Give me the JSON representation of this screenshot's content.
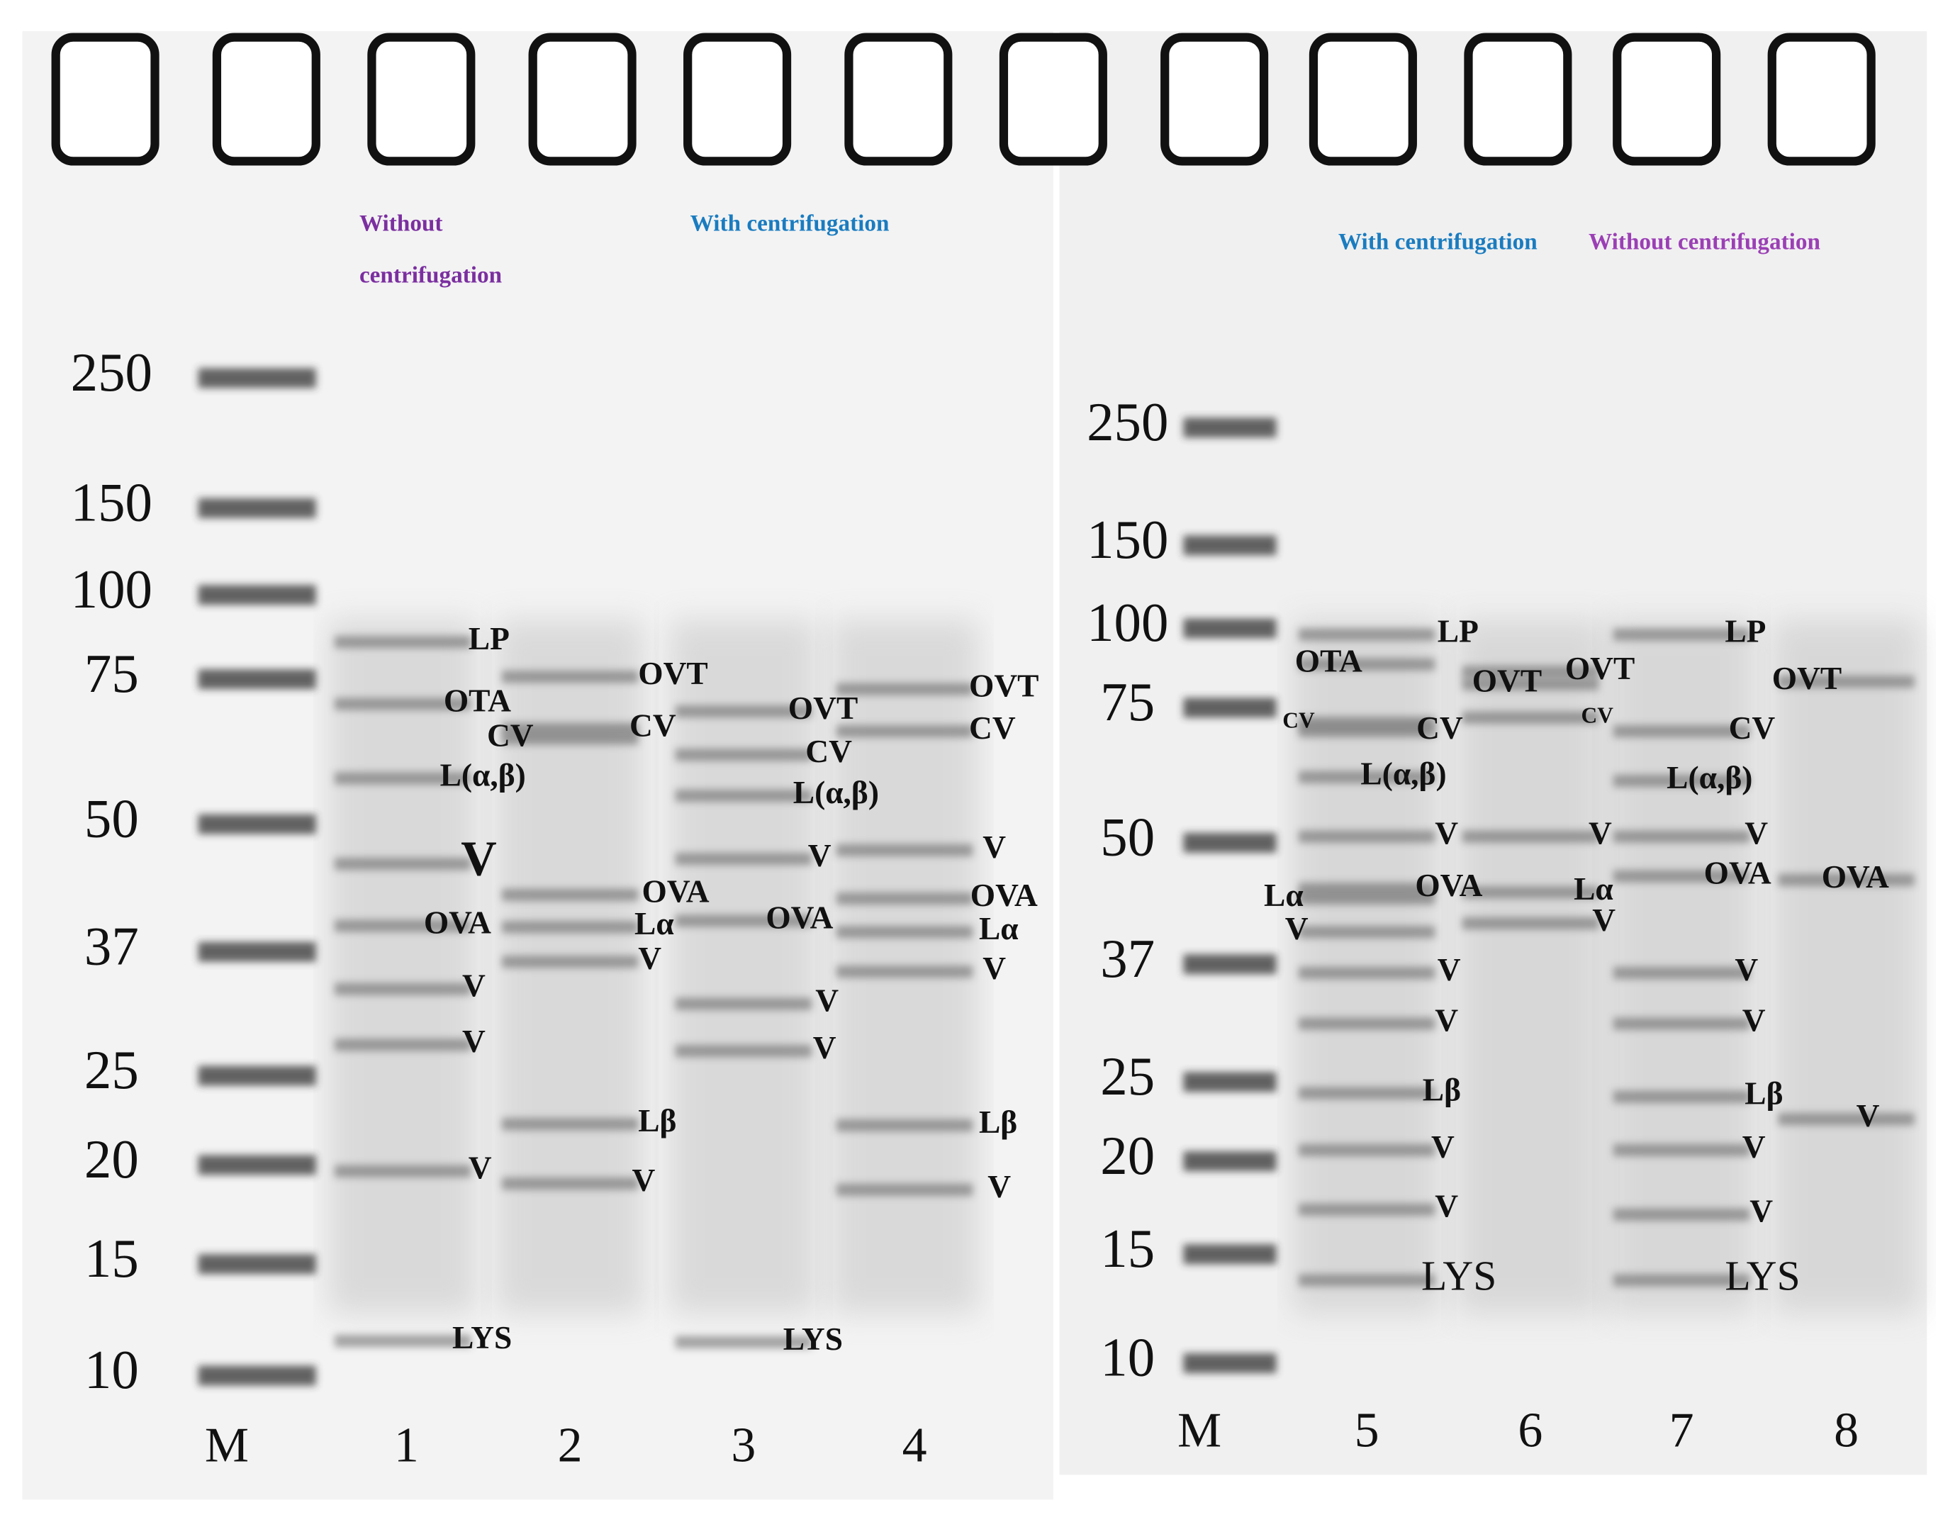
{
  "panels": [
    {
      "marker_labels": [
        250,
        150,
        100,
        75,
        50,
        37,
        25,
        20,
        15,
        10
      ],
      "lane_labels": [
        "M",
        "1",
        "2",
        "3",
        "4"
      ],
      "group_labels": [
        "Without centrifugation",
        "With centrifugation"
      ],
      "band_labels": [
        "LP",
        "OTA",
        "CV",
        "L(α,β)",
        "V",
        "OVA",
        "V",
        "V",
        "V",
        "LYS",
        "OVT",
        "CV",
        "OVA",
        "Lα",
        "V",
        "Lβ",
        "V",
        "OVT",
        "CV",
        "L(α,β)",
        "V",
        "OVA",
        "V",
        "V",
        "LYS",
        "OVT",
        "CV",
        "V",
        "OVA",
        "Lα",
        "V",
        "Lβ",
        "V"
      ]
    },
    {
      "marker_labels": [
        250,
        150,
        100,
        75,
        50,
        37,
        25,
        20,
        15,
        10
      ],
      "lane_labels": [
        "M",
        "5",
        "6",
        "7",
        "8"
      ],
      "group_labels": [
        "With centrifugation",
        "Without centrifugation"
      ],
      "band_labels": [
        "OTA",
        "CV",
        "Lα",
        "V",
        "LP",
        "OVT",
        "CV",
        "L(α,β)",
        "V",
        "OVA",
        "V",
        "V",
        "Lβ",
        "V",
        "V",
        "LYS",
        "OVT",
        "CV",
        "V",
        "Lα",
        "V",
        "LP",
        "OVT",
        "CV",
        "L(α,β)",
        "V",
        "OVA",
        "OVA",
        "V",
        "V",
        "Lβ",
        "V",
        "V",
        "LYS",
        "V"
      ]
    }
  ]
}
